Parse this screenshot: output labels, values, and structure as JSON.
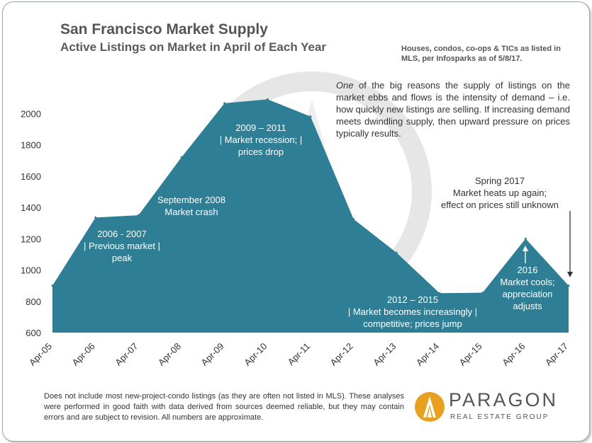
{
  "title": "San Francisco Market Supply",
  "subtitle": "Active Listings on Market in April of Each Year",
  "source_note": "Houses, condos, co-ops & TICs as listed in MLS, per Infosparks as of 5/8/17.",
  "description": {
    "lead": "One",
    "rest": " of the big reasons the supply of listings on the market ebbs and flows is the intensity of demand – i.e. how quickly new listings are selling. If increasing demand meets dwindling supply, then upward pressure on prices typically results."
  },
  "footer": "Does not include most new-project-condo listings (as they are often not listed in MLS). These analyses were performed in good faith with data derived from sources deemed reliable, but they may contain errors and are subject to revision. All numbers are approximate.",
  "logo": {
    "name": "PARAGON",
    "tagline": "REAL ESTATE GROUP"
  },
  "colors": {
    "area": "#2e7f96",
    "title": "#555555",
    "logo_gold": "#e8a020"
  },
  "chart_data": {
    "type": "area",
    "categories": [
      "Apr-05",
      "Apr-06",
      "Apr-07",
      "Apr-08",
      "Apr-09",
      "Apr-10",
      "Apr-11",
      "Apr-12",
      "Apr-13",
      "Apr-14",
      "Apr-15",
      "Apr-16",
      "Apr-17"
    ],
    "values": [
      900,
      1335,
      1350,
      1720,
      2065,
      2090,
      1980,
      1325,
      1110,
      852,
      855,
      1200,
      900
    ],
    "ylim": [
      600,
      2200
    ],
    "yticks": [
      600,
      800,
      1000,
      1200,
      1400,
      1600,
      1800,
      2000
    ],
    "annotations": [
      {
        "lines": [
          "2006 - 2007",
          "| Previous market |",
          "peak"
        ],
        "color": "#ffffff"
      },
      {
        "lines": [
          "September 2008",
          "Market crash"
        ],
        "color": "#ffffff"
      },
      {
        "lines": [
          "2009 – 2011",
          "| Market recession; |",
          "prices drop"
        ],
        "color": "#ffffff"
      },
      {
        "lines": [
          "2012 – 2015",
          "| Market becomes increasingly |",
          "competitive; prices jump"
        ],
        "color": "#ffffff"
      },
      {
        "lines": [
          "2016",
          "Market cools;",
          "appreciation",
          "adjusts"
        ],
        "color": "#ffffff"
      },
      {
        "lines": [
          "Spring 2017",
          "Market heats up again;",
          "effect on prices still unknown"
        ],
        "color": "#333333"
      }
    ]
  }
}
